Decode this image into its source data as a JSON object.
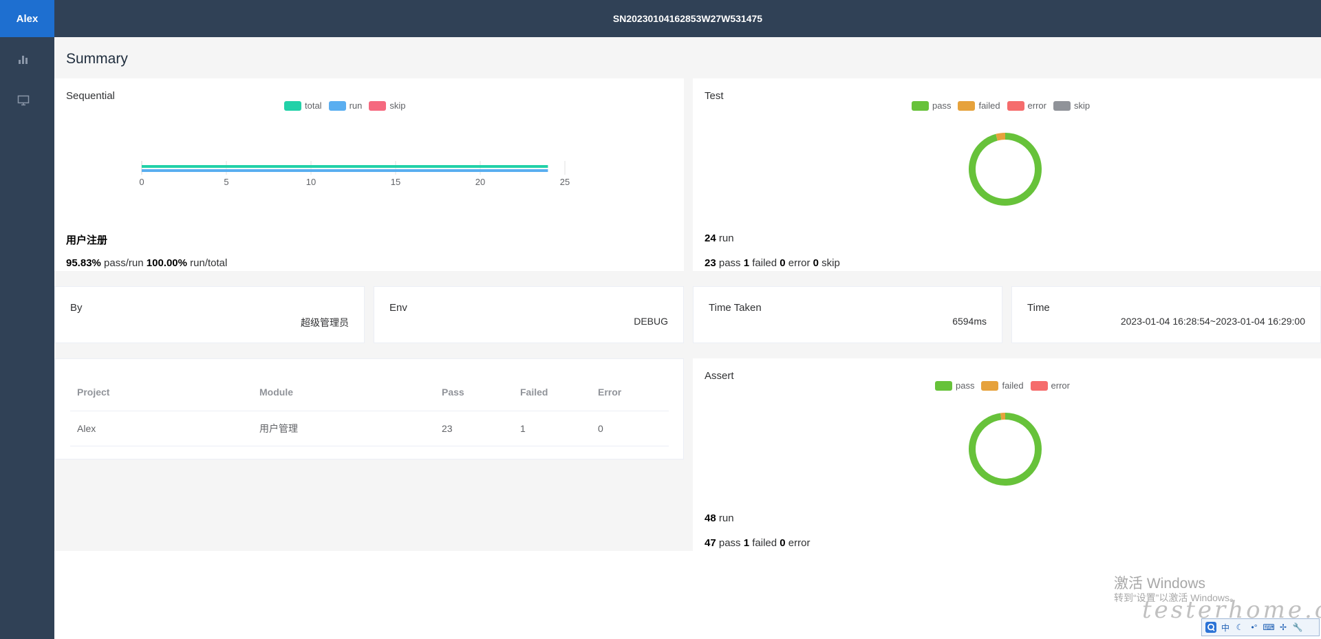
{
  "app": {
    "brand": "Alex",
    "report_id": "SN20230104162853W27W531475"
  },
  "sidebar": {
    "items": [
      {
        "icon": "bar-chart-icon"
      },
      {
        "icon": "monitor-icon"
      }
    ]
  },
  "page": {
    "title": "Summary"
  },
  "sequential": {
    "title": "Sequential",
    "legend": [
      {
        "label": "total",
        "color": "#22d1a8"
      },
      {
        "label": "run",
        "color": "#5aaef0"
      },
      {
        "label": "skip",
        "color": "#f5697f"
      }
    ],
    "suite_name": "用户注册",
    "pass_rate": "95.83%",
    "pass_rate_label": "pass/run",
    "run_rate": "100.00%",
    "run_rate_label": "run/total"
  },
  "test": {
    "title": "Test",
    "legend": [
      {
        "label": "pass",
        "color": "#67c23a"
      },
      {
        "label": "failed",
        "color": "#e6a23c"
      },
      {
        "label": "error",
        "color": "#f56c6c"
      },
      {
        "label": "skip",
        "color": "#909399"
      }
    ],
    "run": "24",
    "run_label": "run",
    "pass": "23",
    "pass_label": "pass",
    "failed": "1",
    "failed_label": "failed",
    "error": "0",
    "error_label": "error",
    "skip": "0",
    "skip_label": "skip"
  },
  "info": {
    "by": {
      "label": "By",
      "value": "超级管理员"
    },
    "env": {
      "label": "Env",
      "value": "DEBUG"
    },
    "time_taken": {
      "label": "Time Taken",
      "value": "6594ms"
    },
    "time": {
      "label": "Time",
      "value": "2023-01-04 16:28:54~2023-01-04 16:29:00"
    }
  },
  "project_table": {
    "headers": [
      "Project",
      "Module",
      "Pass",
      "Failed",
      "Error"
    ],
    "rows": [
      [
        "Alex",
        "用户管理",
        "23",
        "1",
        "0"
      ]
    ]
  },
  "assert": {
    "title": "Assert",
    "legend": [
      {
        "label": "pass",
        "color": "#67c23a"
      },
      {
        "label": "failed",
        "color": "#e6a23c"
      },
      {
        "label": "error",
        "color": "#f56c6c"
      }
    ],
    "run": "48",
    "run_label": "run",
    "pass": "47",
    "pass_label": "pass",
    "failed": "1",
    "failed_label": "failed",
    "error": "0",
    "error_label": "error"
  },
  "overlay": {
    "watermark_line1": "激活 Windows",
    "watermark_line2": "转到“设置”以激活 Windows。",
    "site_mark": "testerhome.com",
    "ime_labels": [
      "中",
      "☾",
      "•°",
      "⌨",
      "✢",
      "🔧"
    ]
  },
  "chart_data": [
    {
      "type": "bar",
      "orientation": "horizontal",
      "categories": [
        "用户注册"
      ],
      "series": [
        {
          "name": "total",
          "values": [
            24
          ]
        },
        {
          "name": "run",
          "values": [
            24
          ]
        },
        {
          "name": "skip",
          "values": [
            0
          ]
        }
      ],
      "x_ticks": [
        0,
        5,
        10,
        15,
        20,
        25
      ],
      "xlim": [
        0,
        25
      ]
    },
    {
      "type": "pie",
      "variant": "donut",
      "labels": [
        "pass",
        "failed",
        "error",
        "skip"
      ],
      "values": [
        23,
        1,
        0,
        0
      ]
    },
    {
      "type": "pie",
      "variant": "donut",
      "labels": [
        "pass",
        "failed",
        "error"
      ],
      "values": [
        47,
        1,
        0
      ]
    }
  ]
}
